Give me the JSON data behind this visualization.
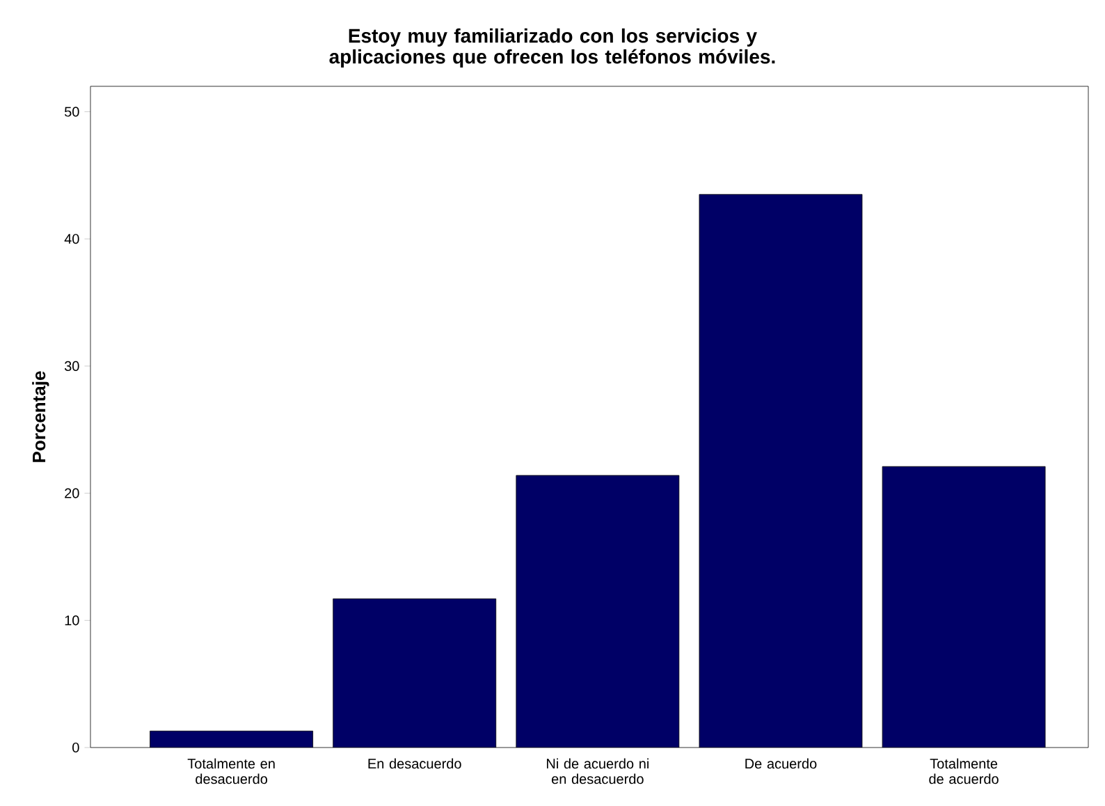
{
  "chart_data": {
    "type": "bar",
    "title": "Estoy muy familiarizado con los servicios y aplicaciones que ofrecen los teléfonos móviles.",
    "ylabel": "Porcentaje",
    "categories": [
      "Totalmente en desacuerdo",
      "En desacuerdo",
      "Ni de acuerdo ni en desacuerdo",
      "De acuerdo",
      "Totalmente de acuerdo"
    ],
    "values": [
      1.3,
      11.7,
      21.4,
      43.5,
      22.1
    ],
    "color": "#000066",
    "ylim": [
      0,
      52
    ],
    "yticks": [
      0,
      10,
      20,
      30,
      40,
      50
    ],
    "grid": false
  }
}
